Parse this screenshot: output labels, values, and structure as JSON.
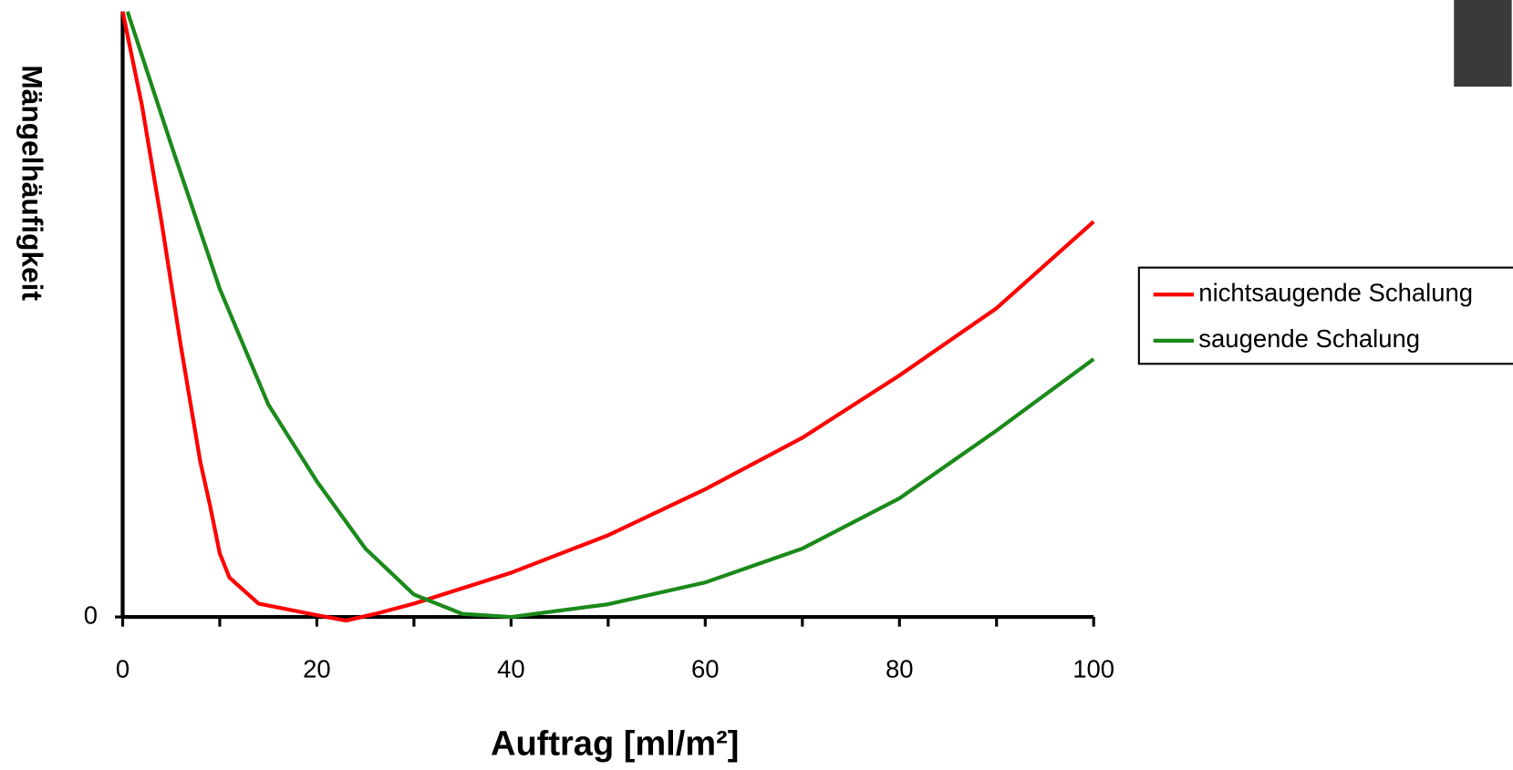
{
  "chart_data": {
    "type": "line",
    "y_label": "Mängelhäufigkeit",
    "x_label": "Auftrag [ml/m²]",
    "xlim": [
      0,
      100
    ],
    "xticks": [
      0,
      20,
      40,
      60,
      80,
      100
    ],
    "xminorticks": [
      10,
      30,
      50,
      70,
      90
    ],
    "ylim": [
      0,
      100
    ],
    "yticks": [
      0
    ],
    "legend": "right",
    "series": [
      {
        "name": "nichtsaugende Schalung",
        "color": "#ff0000",
        "x": [
          0,
          2,
          4,
          6,
          8,
          9,
          10,
          11,
          14,
          20,
          23,
          26,
          30,
          40,
          50,
          60,
          70,
          80,
          90,
          100
        ],
        "values": [
          100,
          84.4,
          65.3,
          44.7,
          25.6,
          18.4,
          10.5,
          6.5,
          2.2,
          0.3,
          -0.6,
          0.5,
          2.2,
          7.3,
          13.5,
          21.1,
          29.6,
          39.9,
          51,
          65.3
        ]
      },
      {
        "name": "saugende Schalung",
        "color": "#1a8a1a",
        "x": [
          0.5,
          5,
          10,
          15,
          20,
          25,
          30,
          35,
          40,
          50,
          60,
          70,
          80,
          90,
          100
        ],
        "values": [
          100,
          78,
          54.2,
          35.1,
          22.4,
          11.3,
          3.7,
          0.5,
          0,
          2.1,
          5.7,
          11.3,
          19.6,
          30.8,
          42.6
        ]
      }
    ]
  }
}
